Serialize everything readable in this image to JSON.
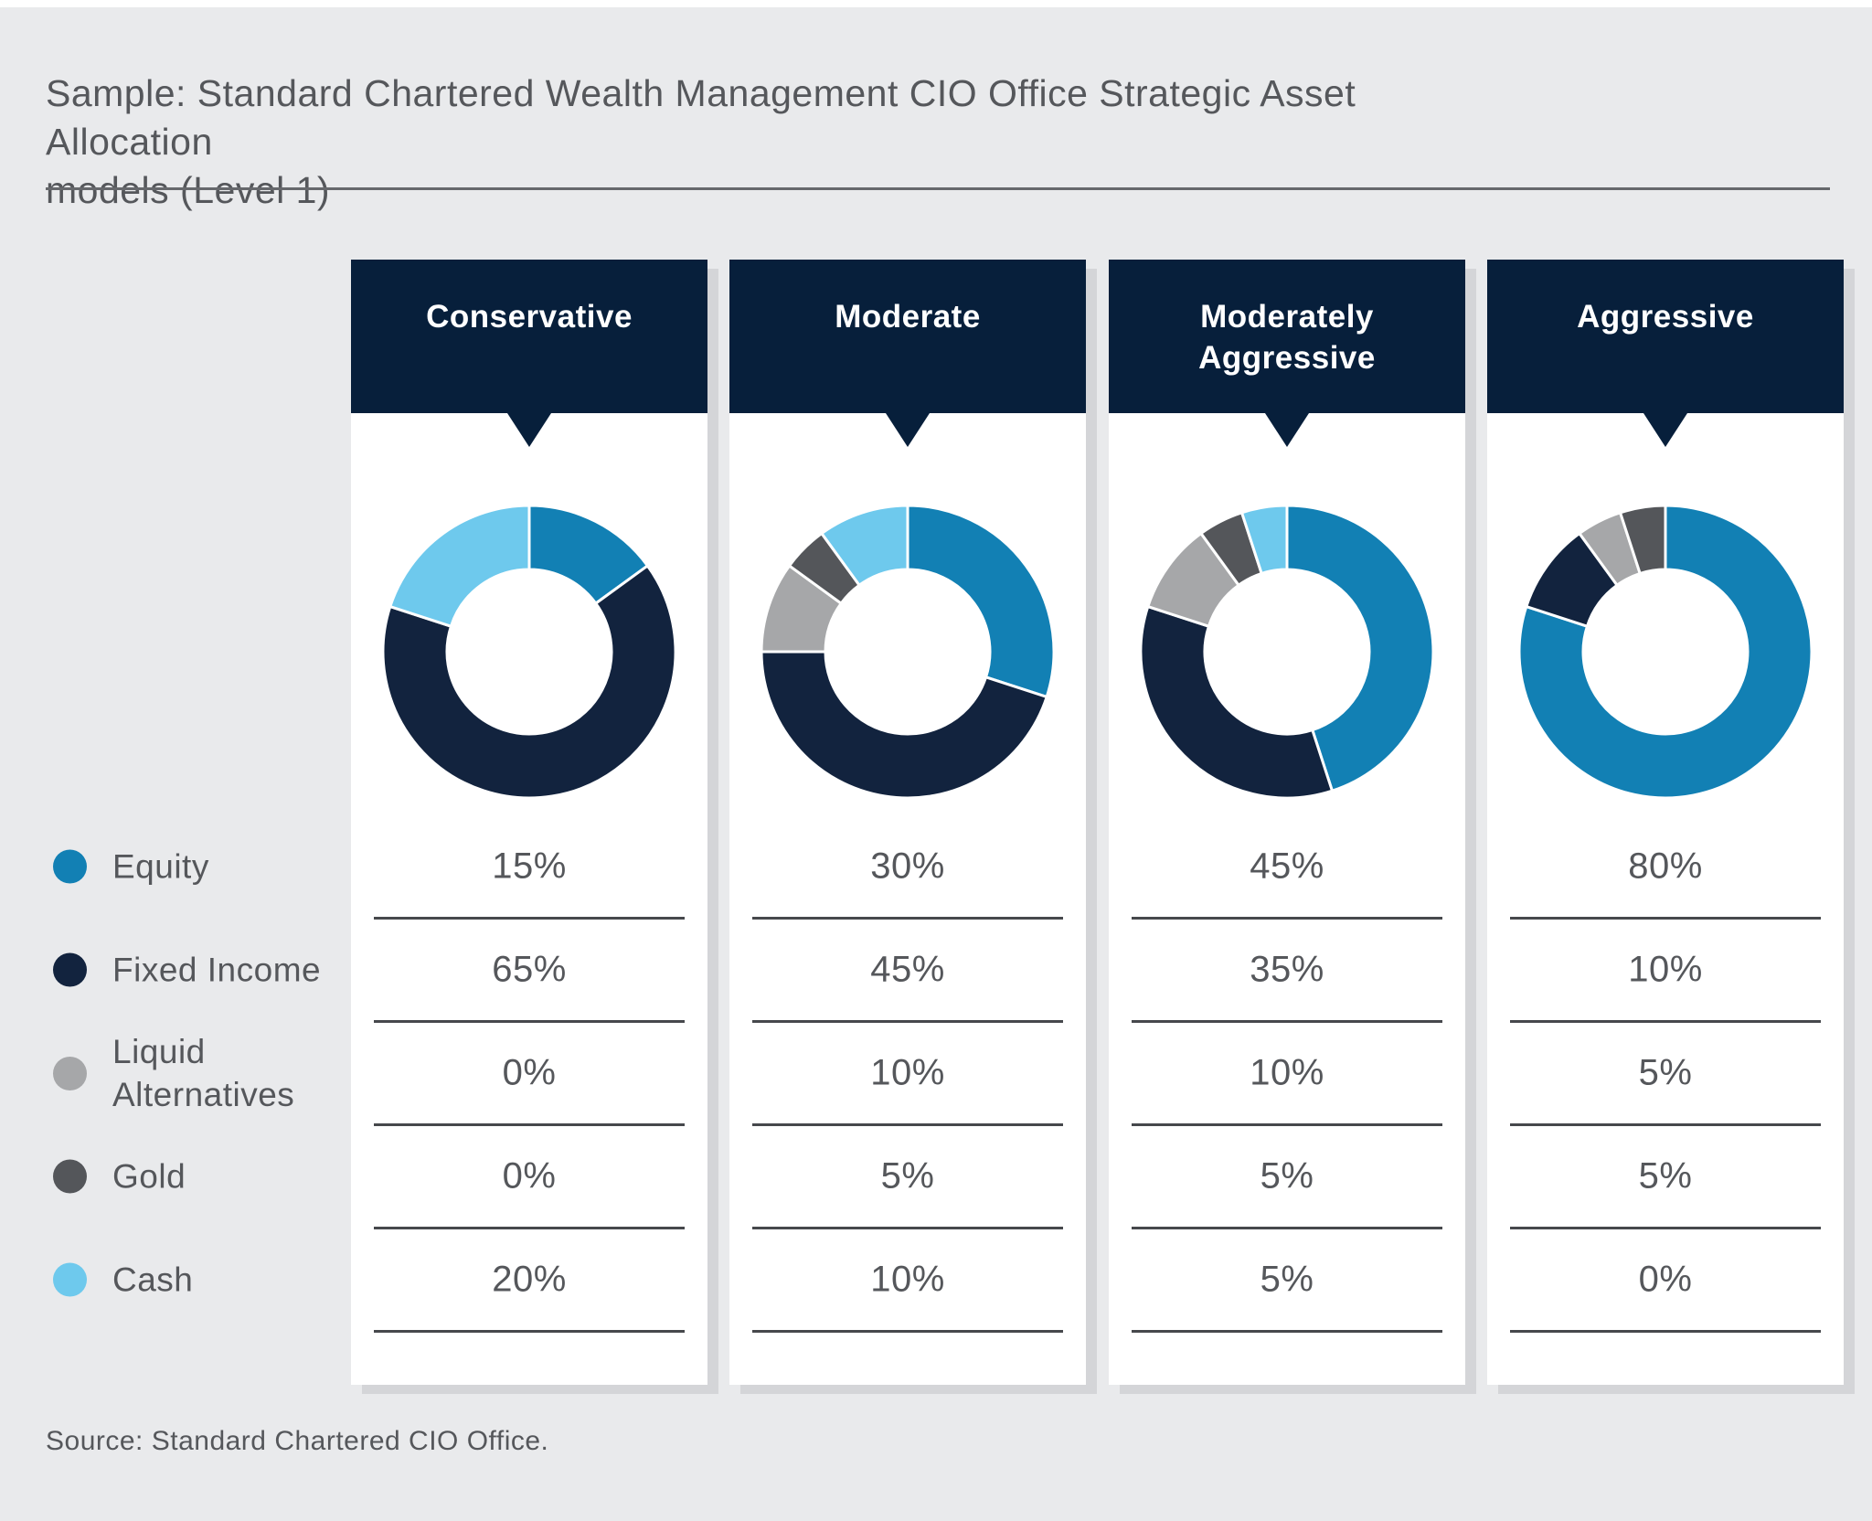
{
  "page": {
    "title_line1": "Sample: Standard Chartered Wealth Management CIO Office Strategic Asset Allocation",
    "title_line2": "models (Level 1)",
    "source": "Source: Standard Chartered CIO Office."
  },
  "legend": {
    "items": [
      {
        "label": "Equity",
        "color": "#1280B4"
      },
      {
        "label": "Fixed Income",
        "color": "#12233E"
      },
      {
        "label": "Liquid Alternatives",
        "color": "#A6A7A9"
      },
      {
        "label": "Gold",
        "color": "#54565A"
      },
      {
        "label": "Cash",
        "color": "#6EC9ED"
      }
    ]
  },
  "models": [
    {
      "name": "Conservative",
      "values_display": [
        "15%",
        "65%",
        "0%",
        "0%",
        "20%"
      ]
    },
    {
      "name": "Moderate",
      "values_display": [
        "30%",
        "45%",
        "10%",
        "5%",
        "10%"
      ]
    },
    {
      "name": "Moderately Aggressive",
      "values_display": [
        "45%",
        "35%",
        "10%",
        "5%",
        "5%"
      ]
    },
    {
      "name": "Aggressive",
      "values_display": [
        "80%",
        "10%",
        "5%",
        "5%",
        "0%"
      ]
    }
  ],
  "chart_data": {
    "type": "pie",
    "subtype": "donut",
    "title": "Strategic Asset Allocation models (Level 1)",
    "categories": [
      "Equity",
      "Fixed Income",
      "Liquid Alternatives",
      "Gold",
      "Cash"
    ],
    "category_colors": [
      "#1280B4",
      "#12233E",
      "#A6A7A9",
      "#54565A",
      "#6EC9ED"
    ],
    "series": [
      {
        "name": "Conservative",
        "values": [
          15,
          65,
          0,
          0,
          20
        ]
      },
      {
        "name": "Moderate",
        "values": [
          30,
          45,
          10,
          5,
          10
        ]
      },
      {
        "name": "Moderately Aggressive",
        "values": [
          45,
          35,
          10,
          5,
          5
        ]
      },
      {
        "name": "Aggressive",
        "values": [
          80,
          10,
          5,
          5,
          0
        ]
      }
    ],
    "unit": "%",
    "start_angle": "top",
    "direction": "clockwise",
    "legend_position": "left"
  },
  "colors": {
    "background": "#E9EAEC",
    "card_background": "#FFFFFF",
    "header_background": "#071F3B",
    "header_text": "#FFFFFF",
    "body_text": "#55575B",
    "separator_line": "#46484C",
    "card_shadow": "#D4D5D8"
  }
}
